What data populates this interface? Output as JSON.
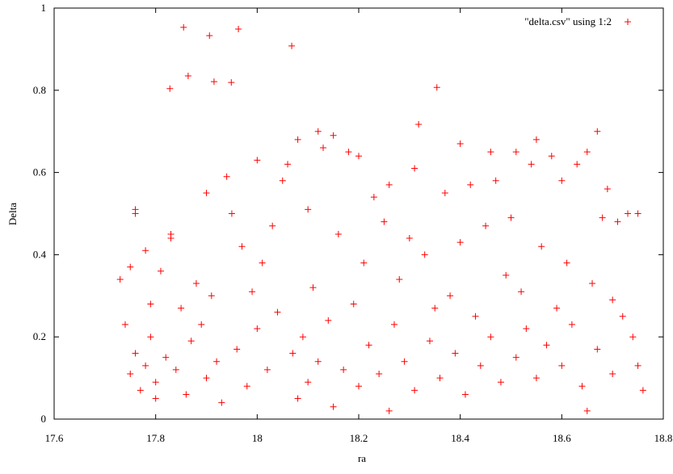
{
  "chart_data": {
    "type": "scatter",
    "xlabel": "ra",
    "ylabel": "Delta",
    "xlim": [
      17.6,
      18.8
    ],
    "ylim": [
      0,
      1
    ],
    "xticks": [
      17.6,
      17.8,
      18,
      18.2,
      18.4,
      18.6,
      18.8
    ],
    "yticks": [
      0,
      0.2,
      0.4,
      0.6,
      0.8,
      1
    ],
    "legend": "top-right",
    "series": [
      {
        "name": "\"delta.csv\" using 1:2",
        "color": "#ff0000",
        "x": [
          17.855,
          17.828,
          17.864,
          17.906,
          17.915,
          17.949,
          17.963,
          18.068,
          18.354,
          18.318,
          17.73,
          17.74,
          17.75,
          17.76,
          17.76,
          17.75,
          17.76,
          17.77,
          17.78,
          17.78,
          17.79,
          17.79,
          17.8,
          17.8,
          17.81,
          17.82,
          17.83,
          17.83,
          17.84,
          17.85,
          17.86,
          17.87,
          17.88,
          17.89,
          17.9,
          17.9,
          17.91,
          17.92,
          17.93,
          17.94,
          17.95,
          17.96,
          17.97,
          17.98,
          17.99,
          18.0,
          18.0,
          18.01,
          18.02,
          18.03,
          18.04,
          18.05,
          18.06,
          18.07,
          18.08,
          18.08,
          18.09,
          18.1,
          18.1,
          18.11,
          18.12,
          18.12,
          18.13,
          18.14,
          18.15,
          18.15,
          18.16,
          18.17,
          18.18,
          18.19,
          18.2,
          18.2,
          18.21,
          18.22,
          18.23,
          18.24,
          18.25,
          18.26,
          18.26,
          18.27,
          18.28,
          18.29,
          18.3,
          18.31,
          18.31,
          18.33,
          18.34,
          18.35,
          18.36,
          18.37,
          18.38,
          18.39,
          18.4,
          18.4,
          18.41,
          18.42,
          18.43,
          18.44,
          18.45,
          18.46,
          18.46,
          18.47,
          18.48,
          18.49,
          18.5,
          18.51,
          18.51,
          18.52,
          18.53,
          18.54,
          18.55,
          18.55,
          18.56,
          18.57,
          18.58,
          18.59,
          18.6,
          18.6,
          18.61,
          18.62,
          18.63,
          18.64,
          18.65,
          18.65,
          18.66,
          18.67,
          18.67,
          18.68,
          18.69,
          18.7,
          18.7,
          18.71,
          18.72,
          18.73,
          18.74,
          18.75,
          18.75,
          18.76
        ],
        "values": [
          0.953,
          0.804,
          0.835,
          0.933,
          0.821,
          0.819,
          0.949,
          0.908,
          0.807,
          0.717,
          0.34,
          0.23,
          0.37,
          0.51,
          0.5,
          0.11,
          0.16,
          0.07,
          0.41,
          0.13,
          0.28,
          0.2,
          0.09,
          0.05,
          0.36,
          0.15,
          0.45,
          0.44,
          0.12,
          0.27,
          0.06,
          0.19,
          0.33,
          0.23,
          0.55,
          0.1,
          0.3,
          0.14,
          0.04,
          0.59,
          0.5,
          0.17,
          0.42,
          0.08,
          0.31,
          0.63,
          0.22,
          0.38,
          0.12,
          0.47,
          0.26,
          0.58,
          0.62,
          0.16,
          0.68,
          0.05,
          0.2,
          0.51,
          0.09,
          0.32,
          0.7,
          0.14,
          0.66,
          0.24,
          0.69,
          0.03,
          0.45,
          0.12,
          0.65,
          0.28,
          0.64,
          0.08,
          0.38,
          0.18,
          0.54,
          0.11,
          0.48,
          0.57,
          0.02,
          0.23,
          0.34,
          0.14,
          0.44,
          0.61,
          0.07,
          0.4,
          0.19,
          0.27,
          0.1,
          0.55,
          0.3,
          0.16,
          0.67,
          0.43,
          0.06,
          0.57,
          0.25,
          0.13,
          0.47,
          0.65,
          0.2,
          0.58,
          0.09,
          0.35,
          0.49,
          0.65,
          0.15,
          0.31,
          0.22,
          0.62,
          0.68,
          0.1,
          0.42,
          0.18,
          0.64,
          0.27,
          0.58,
          0.13,
          0.38,
          0.23,
          0.62,
          0.08,
          0.65,
          0.02,
          0.33,
          0.7,
          0.17,
          0.49,
          0.56,
          0.29,
          0.11,
          0.48,
          0.25,
          0.5,
          0.2,
          0.5,
          0.13,
          0.07
        ]
      }
    ]
  }
}
